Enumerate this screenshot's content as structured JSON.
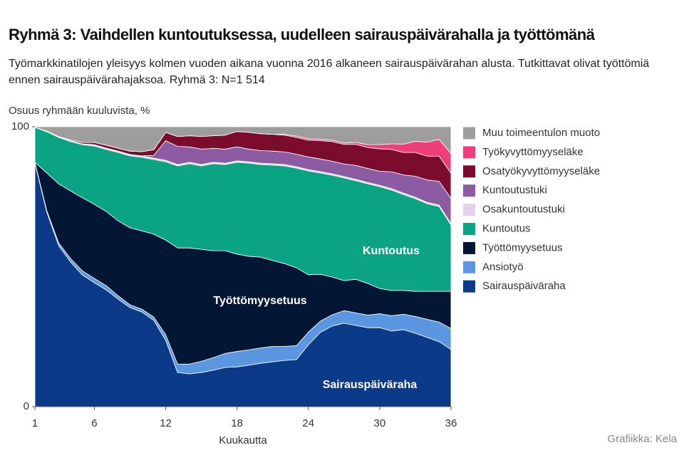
{
  "chart_data": {
    "type": "stacked_area",
    "title": "Ryhmä 3: Vaihdellen kuntoutuksessa, uudelleen sairauspäivärahalla ja työttömänä",
    "subtitle": "Työmarkkinatilojen yleisyys kolmen vuoden aikana vuonna 2016 alkaneen sairauspäivärahan alusta. Tutkittavat olivat työttömiä ennen sairauspäivärahajaksoa. Ryhmä 3: N=1 514",
    "y_label": "Osuus ryhmään kuuluvista, %",
    "x_label": "Kuukautta",
    "source": "Grafiikka: Kela",
    "annotations": [
      "Kuntoutus",
      "Työttömyysetuus",
      "Sairauspäiväraha"
    ],
    "x": [
      1,
      2,
      3,
      4,
      5,
      6,
      7,
      8,
      9,
      10,
      11,
      12,
      13,
      14,
      15,
      16,
      17,
      18,
      19,
      20,
      21,
      22,
      23,
      24,
      25,
      26,
      27,
      28,
      29,
      30,
      31,
      32,
      33,
      34,
      35,
      36
    ],
    "xlim": [
      1,
      36
    ],
    "xticks": [
      1,
      6,
      12,
      18,
      24,
      30,
      36
    ],
    "ylim": [
      0,
      100
    ],
    "yticks": [
      0,
      100
    ],
    "series": [
      {
        "name": "Muu toimeentulon muoto",
        "color": "#9d9d9d",
        "values": [
          0.2,
          1.5,
          3.5,
          4.7,
          5.6,
          5.6,
          6.6,
          7.7,
          8.7,
          8.9,
          8.2,
          2,
          3.5,
          3.2,
          3.5,
          3.2,
          3,
          1.7,
          2,
          2.5,
          2.7,
          2.7,
          3.3,
          4.3,
          4.5,
          4.8,
          5.8,
          5.6,
          6.4,
          6.4,
          6.1,
          6.2,
          5.2,
          5.5,
          4.5,
          9.6
        ]
      },
      {
        "name": "Työkyvyttömyyseläke",
        "color": "#ee3f7b",
        "values": [
          0,
          0,
          0,
          0,
          0,
          0,
          0,
          0,
          0,
          0,
          0,
          0,
          0,
          0,
          0,
          0,
          0,
          0,
          0,
          0,
          0,
          0.3,
          0.5,
          0.5,
          0.5,
          0.5,
          0.5,
          0.7,
          1,
          1.5,
          2,
          3,
          4,
          5,
          6,
          7
        ]
      },
      {
        "name": "Osatyökyvyttömyyseläke",
        "color": "#7b0c2e",
        "values": [
          0,
          0,
          0,
          0.3,
          0.5,
          0.8,
          1,
          1,
          1.2,
          1.5,
          2,
          3,
          3.5,
          4,
          4.5,
          4.5,
          5,
          5.5,
          6,
          6,
          6,
          6,
          6,
          6,
          6.5,
          7,
          7,
          7.5,
          7.5,
          8,
          8,
          8,
          8.5,
          8.5,
          9,
          9
        ]
      },
      {
        "name": "Kuntoutustuki",
        "color": "#8c5ba2",
        "values": [
          0,
          0,
          0,
          0,
          0,
          0,
          0,
          0,
          0,
          0,
          1,
          7,
          6.5,
          5.5,
          5.5,
          5,
          5,
          5,
          4.5,
          4.5,
          4.5,
          4.5,
          4.5,
          4.5,
          4.5,
          4.5,
          4.5,
          5,
          5,
          5,
          6,
          6.5,
          7.5,
          8,
          8.5,
          9
        ]
      },
      {
        "name": "Osakuntoutustuki",
        "color": "#e2d3ea",
        "values": [
          0,
          0.3,
          0.3,
          0.3,
          0.3,
          0.5,
          0.5,
          0.5,
          0.5,
          0.5,
          0.5,
          0.5,
          0.5,
          0.5,
          0.5,
          0.5,
          0.5,
          0.5,
          0.5,
          0.5,
          0.5,
          0.5,
          0.5,
          0.5,
          0.5,
          0.5,
          0.5,
          0.5,
          0.5,
          0.5,
          0.5,
          0.5,
          0.5,
          0.5,
          0.5,
          0.5
        ]
      },
      {
        "name": "Kuntoutus",
        "color": "#0aa384",
        "values": [
          12.5,
          14.7,
          16.6,
          17.6,
          19,
          20.8,
          22.2,
          24.4,
          25.7,
          26.3,
          26.7,
          28,
          29.3,
          30.1,
          29.8,
          31.1,
          30.8,
          32.8,
          33.3,
          33.1,
          34.1,
          34.9,
          35.6,
          37.1,
          36.2,
          36.4,
          36.7,
          35.2,
          35.6,
          36.4,
          35.9,
          34.3,
          33.1,
          31.3,
          30.3,
          23.7
        ]
      },
      {
        "name": "Työttömyysetuus",
        "color": "#031634",
        "values": [
          0,
          13.5,
          21.1,
          24.2,
          26.1,
          26.5,
          26.5,
          26.8,
          27.5,
          28,
          29.6,
          33.8,
          41.5,
          41.5,
          40,
          38.2,
          36.7,
          34.8,
          33.4,
          32.4,
          30.7,
          29.6,
          27.8,
          20.5,
          16.8,
          13.5,
          10.7,
          12,
          11.3,
          9,
          9,
          8.5,
          9,
          10,
          11,
          13.3
        ]
      },
      {
        "name": "Ansiotyö",
        "color": "#5b97e1",
        "values": [
          0.3,
          0.5,
          1,
          1.2,
          1.5,
          1.5,
          1.5,
          1.2,
          1,
          1,
          1.2,
          2,
          3,
          3.5,
          4,
          4.5,
          5,
          5.5,
          5.5,
          5.5,
          5.5,
          5,
          5,
          4.5,
          4,
          4,
          4.5,
          4.5,
          4.5,
          5,
          5.5,
          5.5,
          6,
          6.5,
          7,
          7.5
        ]
      },
      {
        "name": "Sairauspäiväraha",
        "color": "#0b3a89",
        "values": [
          87,
          69.5,
          57.5,
          51.7,
          47,
          44.3,
          41.7,
          38.4,
          35.4,
          33.8,
          30.8,
          23.7,
          12.2,
          11.7,
          12.2,
          13,
          14,
          14.2,
          14.8,
          15.5,
          16,
          16.5,
          16.8,
          22.1,
          26.5,
          28.8,
          29.8,
          29,
          28.2,
          28.2,
          27,
          27.5,
          26.2,
          24.7,
          23.2,
          20.4
        ]
      }
    ]
  }
}
